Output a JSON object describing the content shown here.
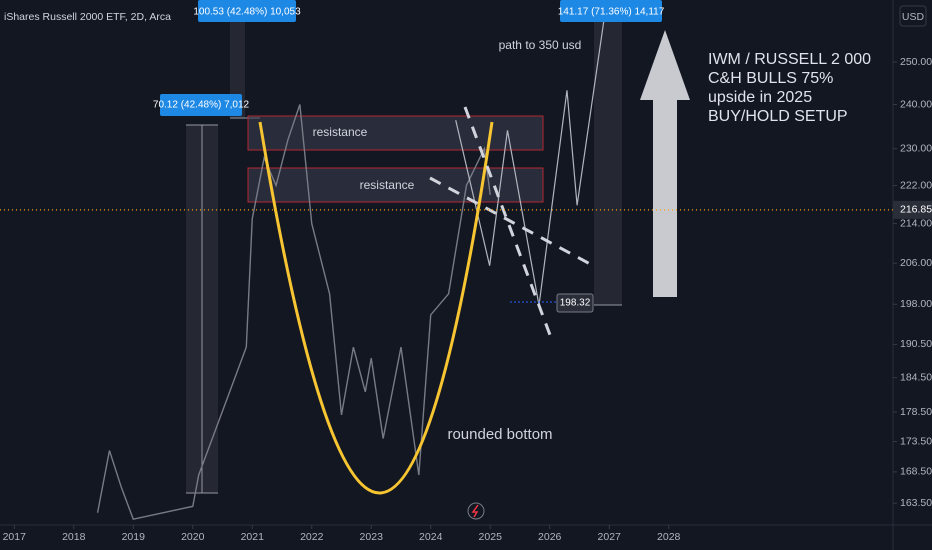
{
  "chart_data": {
    "type": "line",
    "title": "iShares Russell 2000 ETF, 2D, Arca",
    "currency": "USD",
    "log_scale": true,
    "xlim": [
      2016.76,
      2031.77
    ],
    "xticks": [
      2017,
      2018,
      2019,
      2020,
      2021,
      2022,
      2023,
      2024,
      2025,
      2026,
      2027,
      2028
    ],
    "ylim": [
      160.1,
      265.4
    ],
    "yticks": [
      {
        "value": 163.5,
        "label": "163.50"
      },
      {
        "value": 168.5,
        "label": "168.50"
      },
      {
        "value": 173.5,
        "label": "173.50"
      },
      {
        "value": 178.5,
        "label": "178.50"
      },
      {
        "value": 184.5,
        "label": "184.50"
      },
      {
        "value": 190.5,
        "label": "190.50"
      },
      {
        "value": 198,
        "label": "198.00"
      },
      {
        "value": 206,
        "label": "206.00"
      },
      {
        "value": 214,
        "label": "214.00"
      },
      {
        "value": 222,
        "label": "222.00"
      },
      {
        "value": 230,
        "label": "230.00"
      },
      {
        "value": 240,
        "label": "240.00"
      },
      {
        "value": 250,
        "label": "250.00"
      }
    ],
    "last_price": 216.85,
    "target_low": 198.32,
    "series": [
      {
        "name": "IWM",
        "color": "#787b86",
        "x": [
          2018.4,
          2018.6,
          2018.8,
          2019.0,
          2020.0,
          2020.1,
          2020.9,
          2021.0,
          2021.2,
          2021.4,
          2021.6,
          2021.8,
          2022.0,
          2022.3,
          2022.5,
          2022.7,
          2022.9,
          2023.0,
          2023.2,
          2023.5,
          2023.8,
          2024.0,
          2024.3,
          2024.6,
          2024.9,
          2025.0
        ],
        "values": [
          162,
          172,
          166,
          161,
          163,
          168,
          190,
          215,
          228,
          222,
          232,
          240,
          214,
          200,
          178,
          190,
          182,
          188,
          174,
          190,
          168,
          196,
          200,
          222,
          230,
          220
        ]
      },
      {
        "name": "path to 350 usd",
        "color": "#b2b5be",
        "x": [
          2024.42,
          2024.99,
          2025.29,
          2025.82,
          2026.29,
          2026.46,
          2026.96
        ],
        "values": [
          236.4,
          205.5,
          234.1,
          197.8,
          243.3,
          217.8,
          265.4
        ]
      }
    ],
    "annotations": [
      "70.12 (42.48%) 7,012",
      "100.53 (42.48%) 10,053",
      "141.17 (71.36%) 14,117",
      "resistance",
      "resistance",
      "rounded bottom",
      "path to 350 usd"
    ],
    "headline": [
      "IWM / RUSSELL 2 000",
      "C&H BULLS 75%",
      "upside in 2025",
      "BUY/HOLD SETUP"
    ]
  }
}
